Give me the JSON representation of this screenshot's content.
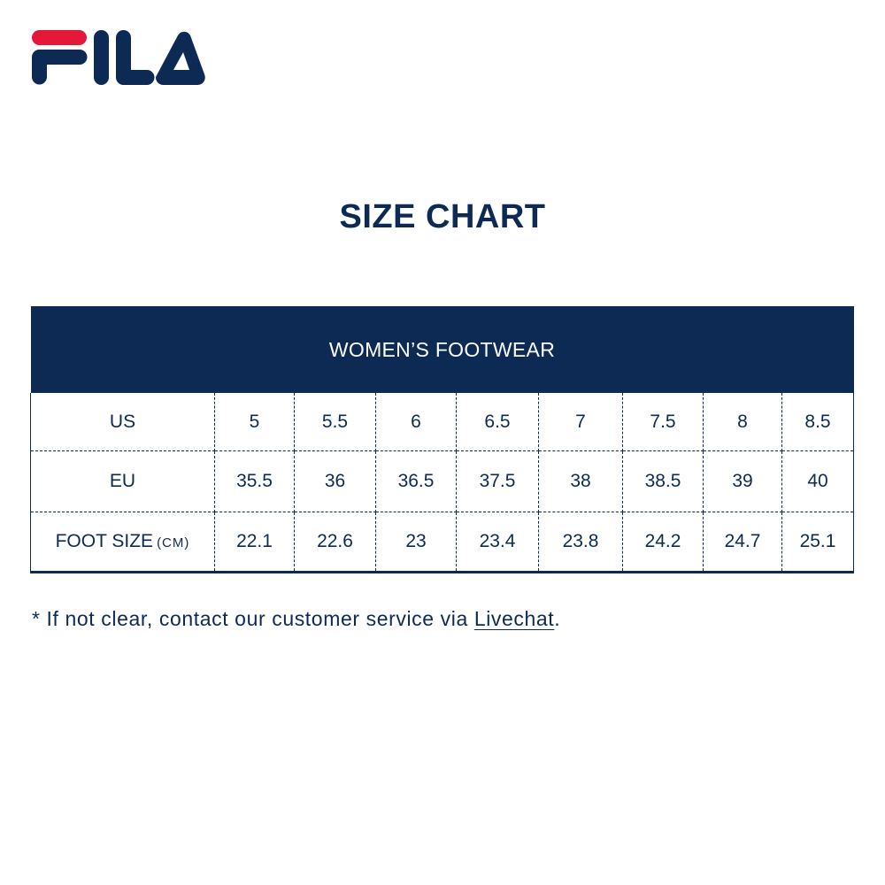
{
  "brand": {
    "logo_text": "FILA",
    "colors": {
      "navy": "#0d2a55",
      "red": "#e31937"
    }
  },
  "title": "SIZE CHART",
  "table": {
    "header": "WOMEN’S FOOTWEAR",
    "rows": [
      {
        "label": "US",
        "unit": "",
        "values": [
          "5",
          "5.5",
          "6",
          "6.5",
          "7",
          "7.5",
          "8",
          "8.5"
        ]
      },
      {
        "label": "EU",
        "unit": "",
        "values": [
          "35.5",
          "36",
          "36.5",
          "37.5",
          "38",
          "38.5",
          "39",
          "40"
        ]
      },
      {
        "label": "FOOT SIZE",
        "unit": "(CM)",
        "values": [
          "22.1",
          "22.6",
          "23",
          "23.4",
          "23.8",
          "24.2",
          "24.7",
          "25.1"
        ]
      }
    ]
  },
  "note": {
    "prefix": "* If not clear, contact our customer service via ",
    "link": "Livechat",
    "suffix": "."
  }
}
